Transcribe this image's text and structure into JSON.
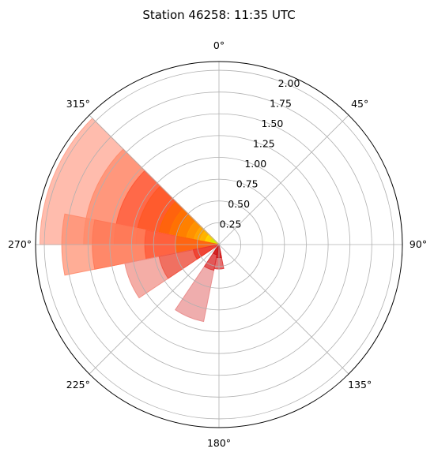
{
  "chart_data": {
    "type": "polar-bar",
    "title": "Station 46258: 11:35 UTC",
    "theta_direction": "clockwise",
    "theta_zero": "north",
    "theta_ticks": [
      "0°",
      "45°",
      "90°",
      "135°",
      "180°",
      "225°",
      "270°",
      "315°"
    ],
    "r_ticks": [
      "0.25",
      "0.50",
      "0.75",
      "1.00",
      "1.25",
      "1.50",
      "1.75",
      "2.00"
    ],
    "rlim": [
      0,
      2.1
    ],
    "grid": true,
    "bins": [
      {
        "direction_center": 292.5,
        "width": 45,
        "stacks": [
          {
            "r": 0.1,
            "color": "#ccee00"
          },
          {
            "r": 0.16,
            "color": "#ffdd00"
          },
          {
            "r": 0.22,
            "color": "#ffbb00"
          },
          {
            "r": 0.29,
            "color": "#ffaa00"
          },
          {
            "r": 0.38,
            "color": "#ff9900"
          },
          {
            "r": 0.48,
            "color": "#ff8800"
          },
          {
            "r": 0.58,
            "color": "#ff7700"
          },
          {
            "r": 0.7,
            "color": "#ff6600"
          },
          {
            "r": 0.95,
            "color": "#ff5522"
          },
          {
            "r": 1.2,
            "color": "#ff5533"
          },
          {
            "r": 1.55,
            "color": "#ff8866"
          },
          {
            "r": 2.05,
            "color": "#ffa08a"
          }
        ]
      },
      {
        "direction_center": 270,
        "width": 22.5,
        "stacks": [
          {
            "r": 0.5,
            "color": "#ff6600"
          },
          {
            "r": 0.85,
            "color": "#ff5533"
          },
          {
            "r": 1.45,
            "color": "#ff7755"
          },
          {
            "r": 1.8,
            "color": "#ff8a6a"
          }
        ]
      },
      {
        "direction_center": 247.5,
        "width": 22.5,
        "stacks": [
          {
            "r": 0.3,
            "color": "#ee3322"
          },
          {
            "r": 0.7,
            "color": "#ee5544"
          },
          {
            "r": 1.1,
            "color": "#f08a80"
          }
        ]
      },
      {
        "direction_center": 202.5,
        "width": 22.5,
        "stacks": [
          {
            "r": 0.12,
            "color": "#cc1111"
          },
          {
            "r": 0.3,
            "color": "#dd3333"
          },
          {
            "r": 0.9,
            "color": "#e88a8a"
          }
        ]
      },
      {
        "direction_center": 180,
        "width": 22.5,
        "stacks": [
          {
            "r": 0.15,
            "color": "#cc1111"
          },
          {
            "r": 0.28,
            "color": "#dd3333"
          }
        ]
      }
    ]
  }
}
